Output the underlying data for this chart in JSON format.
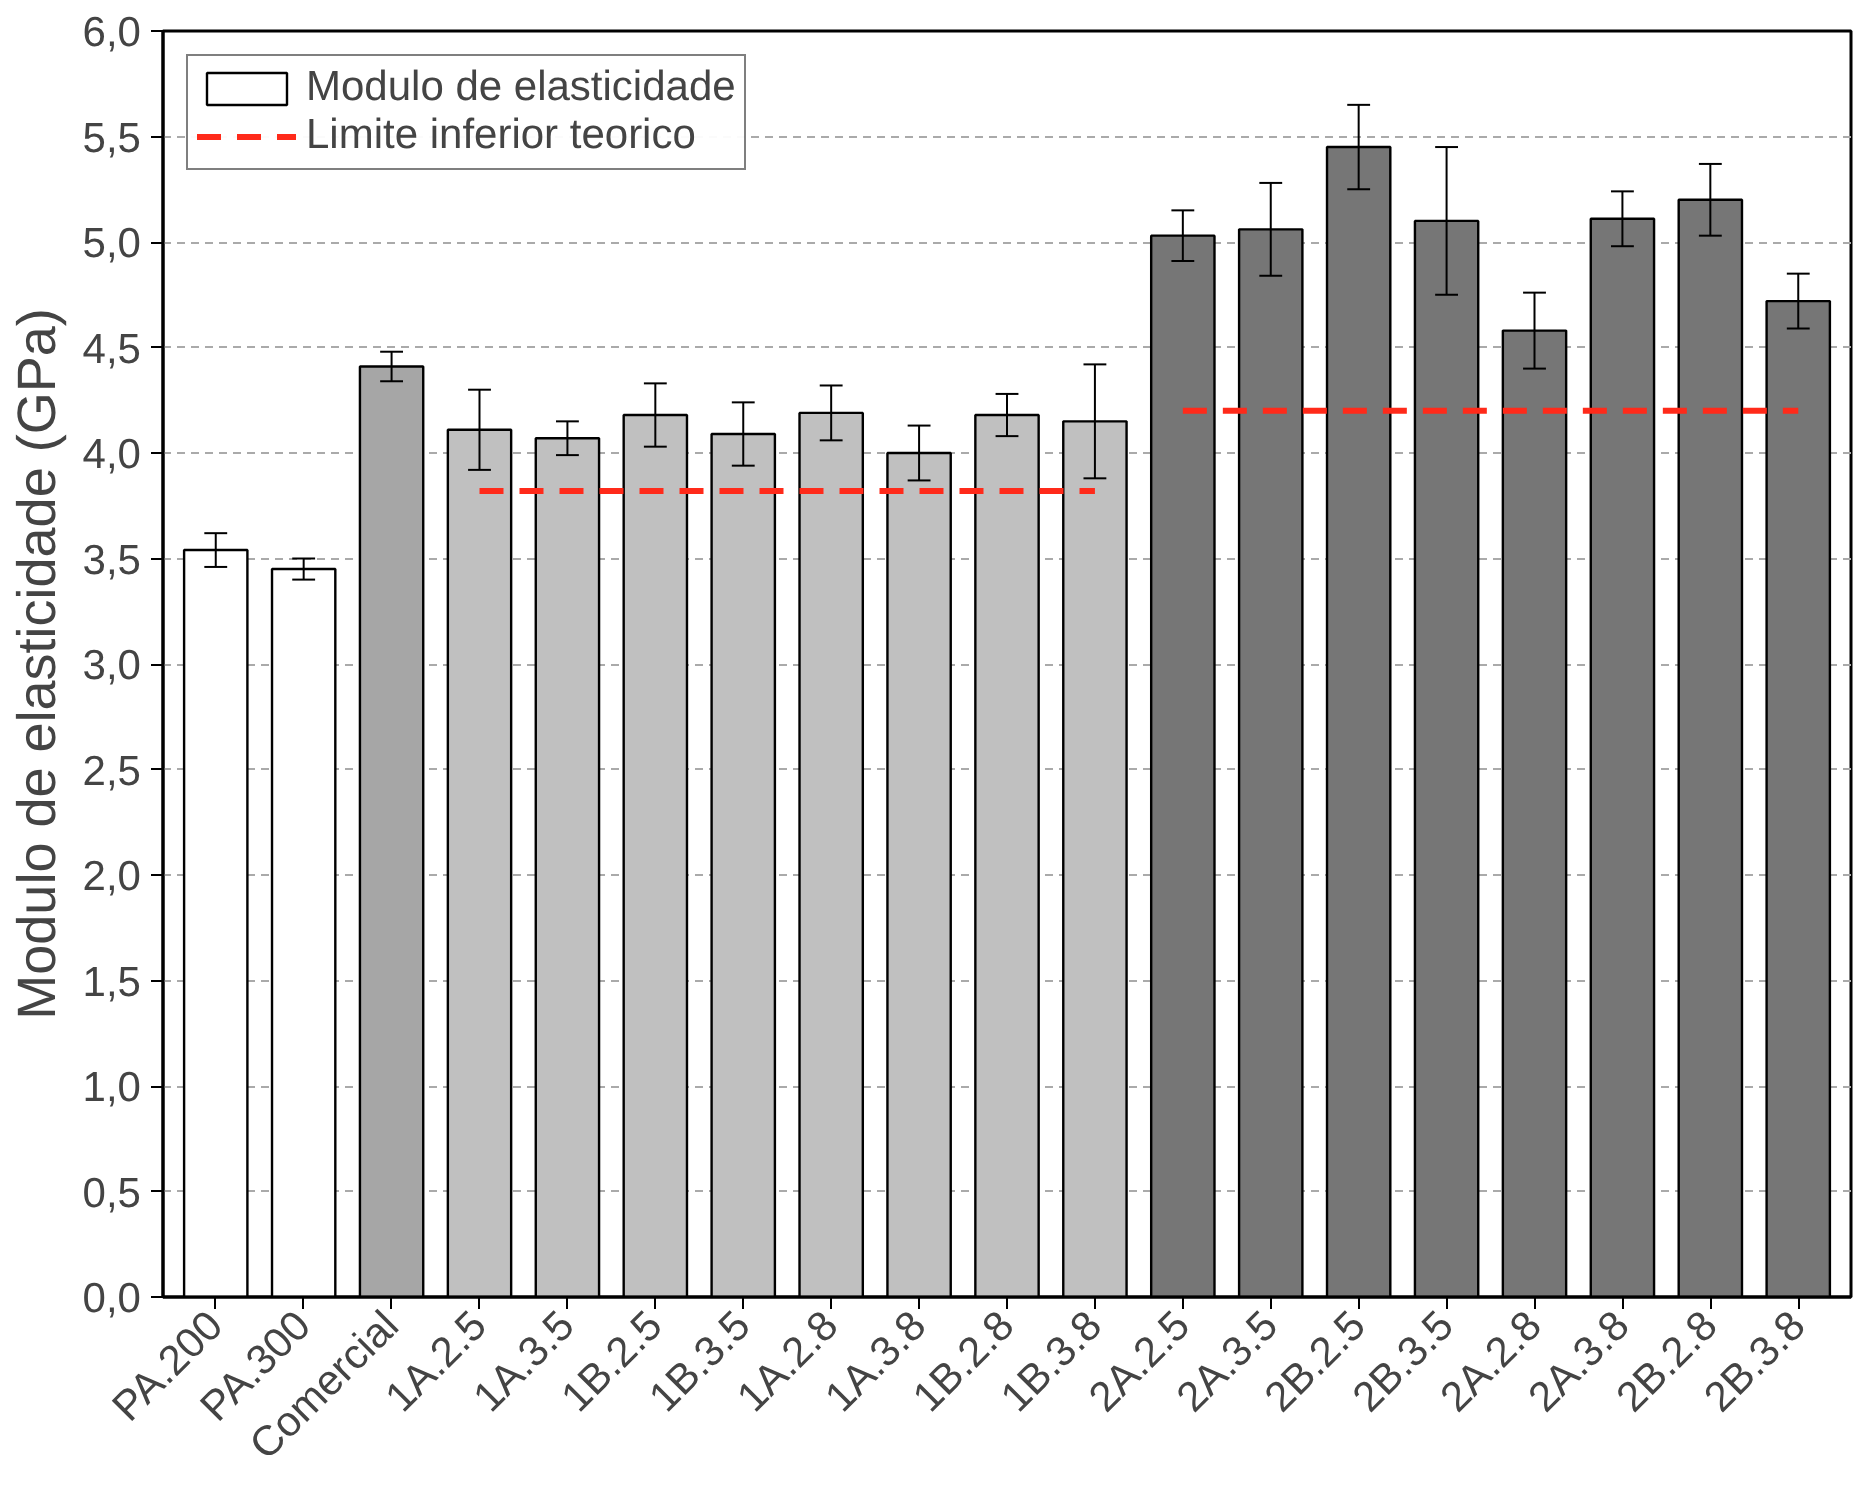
{
  "chart_data": {
    "type": "bar",
    "ylabel": "Modulo de elasticidade (GPa)",
    "categories": [
      "PA.200",
      "PA.300",
      "Comercial",
      "1A.2.5",
      "1A.3.5",
      "1B.2.5",
      "1B.3.5",
      "1A.2.8",
      "1A.3.8",
      "1B.2.8",
      "1B.3.8",
      "2A.2.5",
      "2A.3.5",
      "2B.2.5",
      "2B.3.5",
      "2A.2.8",
      "2A.3.8",
      "2B.2.8",
      "2B.3.8"
    ],
    "series": [
      {
        "name": "Modulo de elasticidade",
        "color": "#ffffff",
        "values": [
          3.54,
          3.45,
          4.41,
          4.11,
          4.07,
          4.18,
          4.09,
          4.19,
          4.0,
          4.18,
          4.15,
          5.03,
          5.06,
          5.45,
          5.1,
          4.58,
          5.11,
          5.2,
          4.72
        ],
        "colors": [
          "#ffffff",
          "#ffffff",
          "#a6a6a6",
          "#c0c0c0",
          "#c0c0c0",
          "#c0c0c0",
          "#c0c0c0",
          "#c0c0c0",
          "#c0c0c0",
          "#c0c0c0",
          "#c0c0c0",
          "#767676",
          "#767676",
          "#767676",
          "#767676",
          "#767676",
          "#767676",
          "#767676",
          "#767676"
        ],
        "errors": [
          0.08,
          0.05,
          0.07,
          0.19,
          0.08,
          0.15,
          0.15,
          0.13,
          0.13,
          0.1,
          0.27,
          0.12,
          0.22,
          0.2,
          0.35,
          0.18,
          0.13,
          0.17,
          0.13
        ]
      },
      {
        "name": "Limite inferior teorico",
        "type": "line",
        "color": "#ff2a1a",
        "line_style": "dashed",
        "values": [
          null,
          null,
          null,
          3.82,
          3.82,
          3.82,
          3.82,
          3.82,
          3.82,
          3.82,
          3.82,
          null,
          null,
          null,
          null,
          null,
          null,
          null,
          null
        ]
      },
      {
        "type": "line",
        "color": "#ff2a1a",
        "line_style": "dashed",
        "values": [
          null,
          null,
          null,
          null,
          null,
          null,
          null,
          null,
          null,
          null,
          null,
          4.2,
          4.2,
          4.2,
          4.2,
          4.2,
          4.2,
          4.2,
          4.2
        ]
      }
    ],
    "ylim": [
      0,
      6
    ],
    "yticks": [
      {
        "value": 0,
        "label": "0,0"
      },
      {
        "value": 0.5,
        "label": "0,5"
      },
      {
        "value": 1,
        "label": "1,0"
      },
      {
        "value": 1.5,
        "label": "1,5"
      },
      {
        "value": 2,
        "label": "2,0"
      },
      {
        "value": 2.5,
        "label": "2,5"
      },
      {
        "value": 3,
        "label": "3,0"
      },
      {
        "value": 3.5,
        "label": "3,5"
      },
      {
        "value": 4,
        "label": "4,0"
      },
      {
        "value": 4.5,
        "label": "4,5"
      },
      {
        "value": 5,
        "label": "5,0"
      },
      {
        "value": 5.5,
        "label": "5,5"
      },
      {
        "value": 6,
        "label": "6,0"
      }
    ],
    "grid": "y",
    "legend": "top left"
  }
}
